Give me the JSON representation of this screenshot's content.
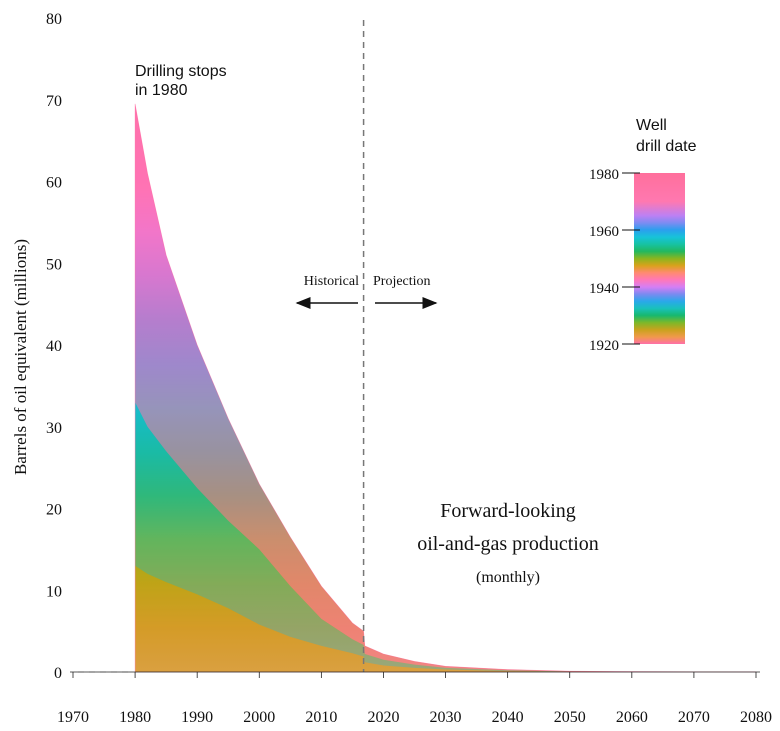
{
  "chart_data": {
    "type": "area",
    "title": "",
    "xlabel": "",
    "ylabel": "Barrels of oil equivalent (millions)",
    "xlim": [
      1970,
      2080
    ],
    "ylim": [
      0,
      80
    ],
    "x_ticks": [
      1970,
      1980,
      1990,
      2000,
      2010,
      2020,
      2030,
      2040,
      2050,
      2060,
      2070,
      2080
    ],
    "y_ticks": [
      0,
      10,
      20,
      30,
      40,
      50,
      60,
      70,
      80
    ],
    "x": [
      1980,
      1982,
      1985,
      1990,
      1995,
      2000,
      2005,
      2010,
      2015,
      2016.8,
      2017,
      2020,
      2025,
      2030,
      2040,
      2050,
      2060,
      2070,
      2080
    ],
    "series": [
      {
        "values": [
          69.5,
          61,
          51,
          40,
          31,
          23,
          16.5,
          10.5,
          6,
          5,
          3.2,
          2.2,
          1.3,
          0.7,
          0.3,
          0.1,
          0.05,
          0.03,
          0.02
        ]
      }
    ],
    "boundaries": {
      "cohort_1960": [
        33,
        30,
        27,
        22.5,
        18.5,
        15,
        10.5,
        6.5,
        4,
        3.3,
        2.2,
        1.5,
        0.9,
        0.5,
        0.2,
        0.08,
        0.04,
        0.02,
        0.01
      ],
      "cohort_1940": [
        13,
        12,
        11,
        9.5,
        7.8,
        5.8,
        4.3,
        3.2,
        2.3,
        1.9,
        1.2,
        0.8,
        0.5,
        0.3,
        0.1,
        0.04,
        0.02,
        0.01,
        0.005
      ]
    },
    "divider_x": 2016.8,
    "annotations": {
      "drilling_stops": [
        "Drilling stops",
        "in 1980"
      ],
      "historical": "Historical",
      "projection": "Projection",
      "forward_title": [
        "Forward-looking",
        "oil-and-gas production"
      ],
      "forward_sub": "(monthly)"
    },
    "colorbar": {
      "title": [
        "Well",
        "drill date"
      ],
      "ticks": [
        1920,
        1940,
        1960,
        1980
      ],
      "range": [
        1920,
        1980
      ],
      "stops": [
        {
          "year": 1920,
          "color": "#ff6fa8"
        },
        {
          "year": 1922.5,
          "color": "#f09a4a"
        },
        {
          "year": 1925,
          "color": "#c9a21e"
        },
        {
          "year": 1927.5,
          "color": "#7db829"
        },
        {
          "year": 1930,
          "color": "#18b86e"
        },
        {
          "year": 1932.5,
          "color": "#19c1bb"
        },
        {
          "year": 1935,
          "color": "#2aa8ea"
        },
        {
          "year": 1937.5,
          "color": "#7c8af0"
        },
        {
          "year": 1940,
          "color": "#d57ef5"
        },
        {
          "year": 1942.5,
          "color": "#ff77b8"
        },
        {
          "year": 1945,
          "color": "#ff8a70"
        },
        {
          "year": 1947.5,
          "color": "#d9a21c"
        },
        {
          "year": 1950,
          "color": "#8ab51f"
        },
        {
          "year": 1952.5,
          "color": "#22b860"
        },
        {
          "year": 1955,
          "color": "#17c2a2"
        },
        {
          "year": 1957.5,
          "color": "#17c3d8"
        },
        {
          "year": 1960,
          "color": "#2b9fee"
        },
        {
          "year": 1962.5,
          "color": "#7c8cf2"
        },
        {
          "year": 1965,
          "color": "#bc80f4"
        },
        {
          "year": 1970,
          "color": "#ff78b0"
        },
        {
          "year": 1980,
          "color": "#ff6f9c"
        }
      ]
    }
  }
}
